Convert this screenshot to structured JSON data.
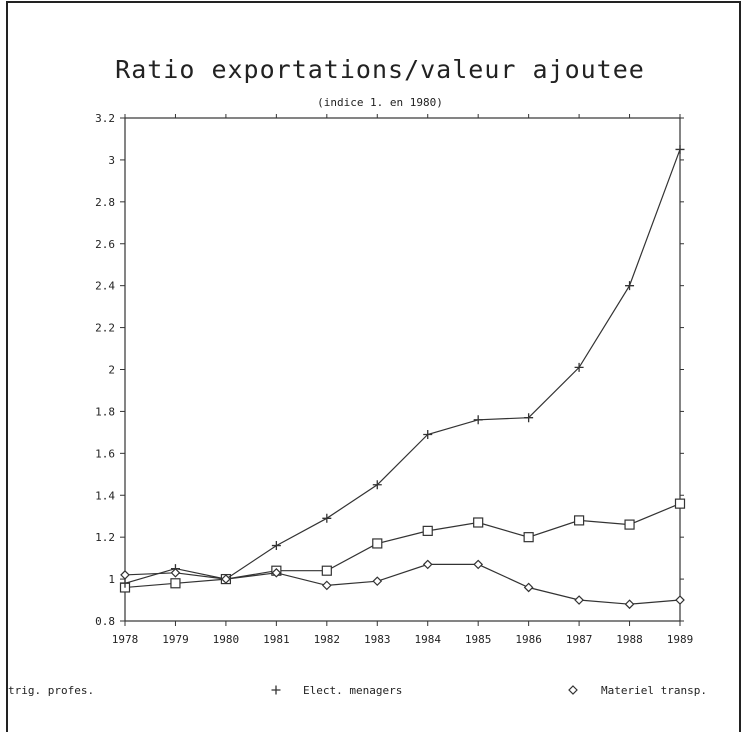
{
  "chart_data": {
    "type": "line",
    "title": "Ratio exportations/valeur ajoutee",
    "subtitle": "(indice 1. en 1980)",
    "xlabel": "",
    "ylabel": "",
    "x": [
      1978,
      1979,
      1980,
      1981,
      1982,
      1983,
      1984,
      1985,
      1986,
      1987,
      1988,
      1989
    ],
    "x_tick_labels": [
      "1978",
      "1979",
      "1980",
      "1981",
      "1982",
      "1983",
      "1984",
      "1985",
      "1986",
      "1987",
      "1988",
      "1989"
    ],
    "ylim": [
      0.8,
      3.2
    ],
    "y_ticks": [
      0.8,
      1,
      1.2,
      1.4,
      1.6,
      1.8,
      2,
      2.2,
      2.4,
      2.6,
      2.8,
      3,
      3.2
    ],
    "y_tick_labels": [
      "0.8",
      "1",
      "1.2",
      "1.4",
      "1.6",
      "1.8",
      "2",
      "2.2",
      "2.4",
      "2.6",
      "2.8",
      "3",
      "3.2"
    ],
    "grid": false,
    "legend_position": "bottom",
    "line_color": "#333333",
    "series": [
      {
        "name": "trig. profes.",
        "marker": "square",
        "values": [
          0.96,
          0.98,
          1.0,
          1.04,
          1.04,
          1.17,
          1.23,
          1.27,
          1.2,
          1.28,
          1.26,
          1.36
        ]
      },
      {
        "name": "Elect. menagers",
        "marker": "plus",
        "values": [
          0.98,
          1.05,
          1.0,
          1.16,
          1.29,
          1.45,
          1.69,
          1.76,
          1.77,
          2.01,
          2.4,
          3.05
        ]
      },
      {
        "name": "Materiel transp.",
        "marker": "diamond",
        "values": [
          1.02,
          1.03,
          1.0,
          1.03,
          0.97,
          0.99,
          1.07,
          1.07,
          0.96,
          0.9,
          0.88,
          0.9
        ]
      }
    ]
  }
}
